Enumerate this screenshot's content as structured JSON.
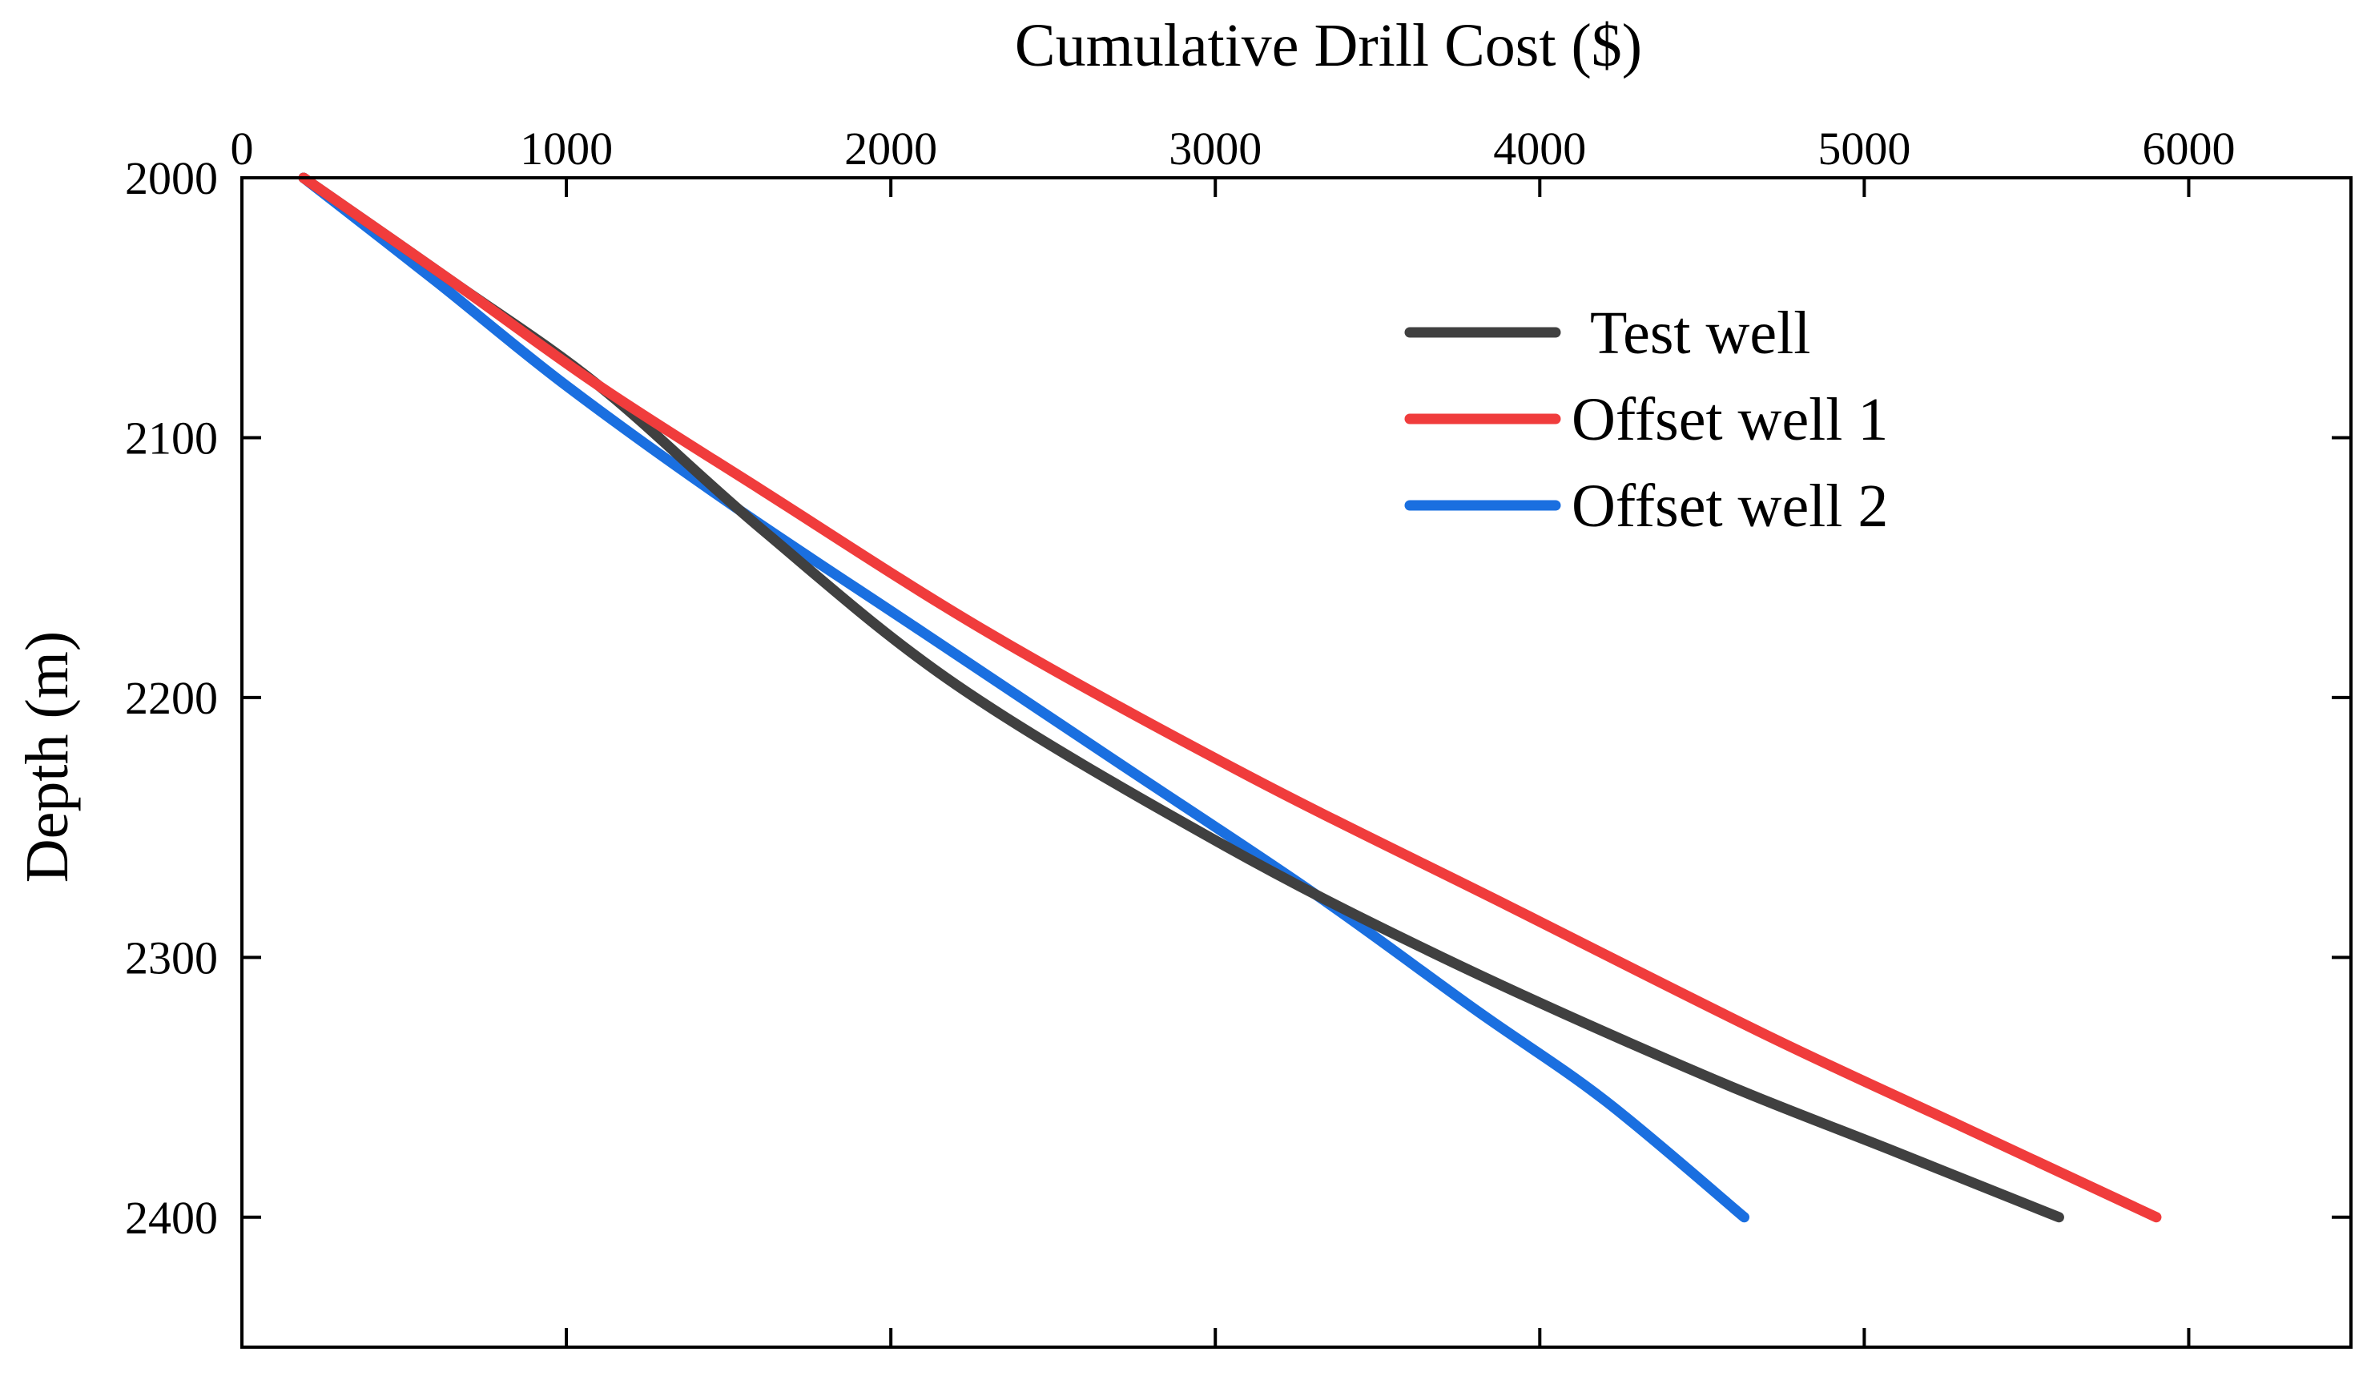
{
  "chart_data": {
    "type": "line",
    "title": "",
    "xlabel": "Cumulative Drill Cost ($)",
    "ylabel": "Depth (m)",
    "x_axis_position": "top",
    "y_inverted": true,
    "xlim": [
      0,
      6500
    ],
    "ylim": [
      2000,
      2450
    ],
    "x_ticks": [
      0,
      1000,
      2000,
      3000,
      4000,
      5000,
      6000
    ],
    "y_ticks": [
      2000,
      2100,
      2200,
      2300,
      2400
    ],
    "x_tick_labels": [
      "0",
      "1000",
      "2000",
      "3000",
      "4000",
      "5000",
      "6000"
    ],
    "y_tick_labels": [
      "2000",
      "2100",
      "2200",
      "2300",
      "2400"
    ],
    "grid": false,
    "legend_position": "top-right",
    "series": [
      {
        "name": "Test well",
        "color": "#404040",
        "points": [
          [
            190,
            2000
          ],
          [
            650,
            2040
          ],
          [
            1100,
            2080
          ],
          [
            1600,
            2135
          ],
          [
            2200,
            2195
          ],
          [
            3000,
            2255
          ],
          [
            3700,
            2300
          ],
          [
            4500,
            2345
          ],
          [
            5100,
            2375
          ],
          [
            5600,
            2400
          ]
        ]
      },
      {
        "name": "Offset well 1",
        "color": "#f03c3c",
        "points": [
          [
            190,
            2000
          ],
          [
            650,
            2040
          ],
          [
            1100,
            2080
          ],
          [
            1600,
            2120
          ],
          [
            2300,
            2175
          ],
          [
            3100,
            2230
          ],
          [
            3900,
            2280
          ],
          [
            4700,
            2330
          ],
          [
            5300,
            2365
          ],
          [
            5900,
            2400
          ]
        ]
      },
      {
        "name": "Offset well 2",
        "color": "#1a6fe0",
        "points": [
          [
            190,
            2000
          ],
          [
            600,
            2040
          ],
          [
            1000,
            2080
          ],
          [
            1500,
            2125
          ],
          [
            2100,
            2175
          ],
          [
            2700,
            2225
          ],
          [
            3300,
            2275
          ],
          [
            3800,
            2320
          ],
          [
            4200,
            2355
          ],
          [
            4630,
            2400
          ]
        ]
      }
    ]
  }
}
